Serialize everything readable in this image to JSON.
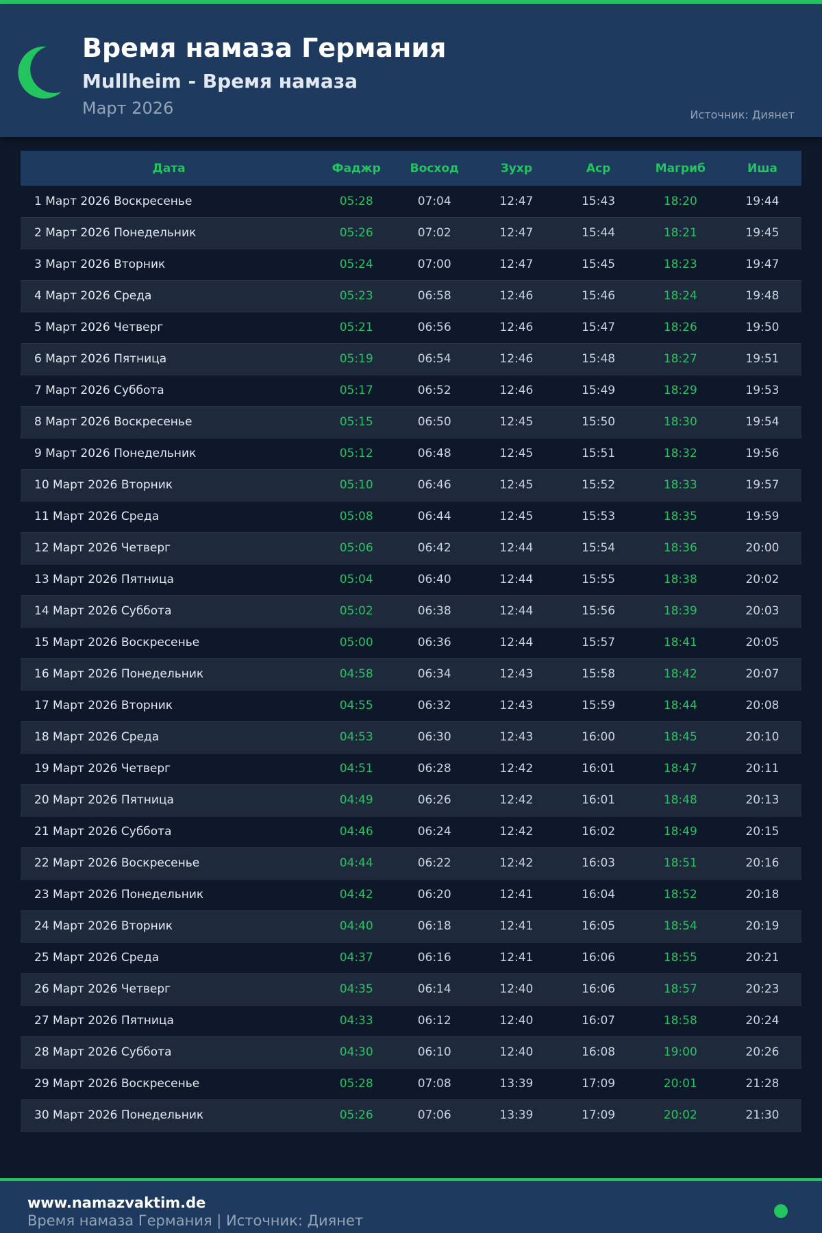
{
  "colors": {
    "accent": "#22c55e",
    "header_bg": "#1e3a5f",
    "page_bg": "#0f172a"
  },
  "header": {
    "icon": "crescent-moon-icon",
    "title": "Время намаза Германия",
    "subtitle": "Mullheim - Время намаза",
    "month": "Март 2026",
    "source": "Источник: Диянет"
  },
  "table": {
    "columns": [
      "Дата",
      "Фаджр",
      "Восход",
      "Зухр",
      "Аср",
      "Магриб",
      "Иша"
    ],
    "rows": [
      [
        "1 Март 2026 Воскресенье",
        "05:28",
        "07:04",
        "12:47",
        "15:43",
        "18:20",
        "19:44"
      ],
      [
        "2 Март 2026 Понедельник",
        "05:26",
        "07:02",
        "12:47",
        "15:44",
        "18:21",
        "19:45"
      ],
      [
        "3 Март 2026 Вторник",
        "05:24",
        "07:00",
        "12:47",
        "15:45",
        "18:23",
        "19:47"
      ],
      [
        "4 Март 2026 Среда",
        "05:23",
        "06:58",
        "12:46",
        "15:46",
        "18:24",
        "19:48"
      ],
      [
        "5 Март 2026 Четверг",
        "05:21",
        "06:56",
        "12:46",
        "15:47",
        "18:26",
        "19:50"
      ],
      [
        "6 Март 2026 Пятница",
        "05:19",
        "06:54",
        "12:46",
        "15:48",
        "18:27",
        "19:51"
      ],
      [
        "7 Март 2026 Суббота",
        "05:17",
        "06:52",
        "12:46",
        "15:49",
        "18:29",
        "19:53"
      ],
      [
        "8 Март 2026 Воскресенье",
        "05:15",
        "06:50",
        "12:45",
        "15:50",
        "18:30",
        "19:54"
      ],
      [
        "9 Март 2026 Понедельник",
        "05:12",
        "06:48",
        "12:45",
        "15:51",
        "18:32",
        "19:56"
      ],
      [
        "10 Март 2026 Вторник",
        "05:10",
        "06:46",
        "12:45",
        "15:52",
        "18:33",
        "19:57"
      ],
      [
        "11 Март 2026 Среда",
        "05:08",
        "06:44",
        "12:45",
        "15:53",
        "18:35",
        "19:59"
      ],
      [
        "12 Март 2026 Четверг",
        "05:06",
        "06:42",
        "12:44",
        "15:54",
        "18:36",
        "20:00"
      ],
      [
        "13 Март 2026 Пятница",
        "05:04",
        "06:40",
        "12:44",
        "15:55",
        "18:38",
        "20:02"
      ],
      [
        "14 Март 2026 Суббота",
        "05:02",
        "06:38",
        "12:44",
        "15:56",
        "18:39",
        "20:03"
      ],
      [
        "15 Март 2026 Воскресенье",
        "05:00",
        "06:36",
        "12:44",
        "15:57",
        "18:41",
        "20:05"
      ],
      [
        "16 Март 2026 Понедельник",
        "04:58",
        "06:34",
        "12:43",
        "15:58",
        "18:42",
        "20:07"
      ],
      [
        "17 Март 2026 Вторник",
        "04:55",
        "06:32",
        "12:43",
        "15:59",
        "18:44",
        "20:08"
      ],
      [
        "18 Март 2026 Среда",
        "04:53",
        "06:30",
        "12:43",
        "16:00",
        "18:45",
        "20:10"
      ],
      [
        "19 Март 2026 Четверг",
        "04:51",
        "06:28",
        "12:42",
        "16:01",
        "18:47",
        "20:11"
      ],
      [
        "20 Март 2026 Пятница",
        "04:49",
        "06:26",
        "12:42",
        "16:01",
        "18:48",
        "20:13"
      ],
      [
        "21 Март 2026 Суббота",
        "04:46",
        "06:24",
        "12:42",
        "16:02",
        "18:49",
        "20:15"
      ],
      [
        "22 Март 2026 Воскресенье",
        "04:44",
        "06:22",
        "12:42",
        "16:03",
        "18:51",
        "20:16"
      ],
      [
        "23 Март 2026 Понедельник",
        "04:42",
        "06:20",
        "12:41",
        "16:04",
        "18:52",
        "20:18"
      ],
      [
        "24 Март 2026 Вторник",
        "04:40",
        "06:18",
        "12:41",
        "16:05",
        "18:54",
        "20:19"
      ],
      [
        "25 Март 2026 Среда",
        "04:37",
        "06:16",
        "12:41",
        "16:06",
        "18:55",
        "20:21"
      ],
      [
        "26 Март 2026 Четверг",
        "04:35",
        "06:14",
        "12:40",
        "16:06",
        "18:57",
        "20:23"
      ],
      [
        "27 Март 2026 Пятница",
        "04:33",
        "06:12",
        "12:40",
        "16:07",
        "18:58",
        "20:24"
      ],
      [
        "28 Март 2026 Суббота",
        "04:30",
        "06:10",
        "12:40",
        "16:08",
        "19:00",
        "20:26"
      ],
      [
        "29 Март 2026 Воскресенье",
        "05:28",
        "07:08",
        "13:39",
        "17:09",
        "20:01",
        "21:28"
      ],
      [
        "30 Март 2026 Понедельник",
        "05:26",
        "07:06",
        "13:39",
        "17:09",
        "20:02",
        "21:30"
      ]
    ]
  },
  "footer": {
    "site": "www.namazvaktim.de",
    "text": "Время намаза Германия | Источник: Диянет"
  }
}
